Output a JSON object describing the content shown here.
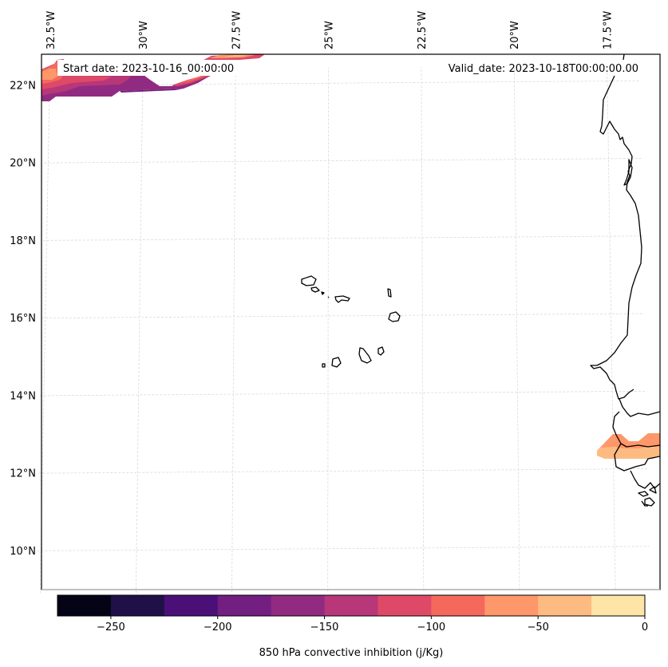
{
  "map": {
    "variable": "850 hPa convective inhibition",
    "units": "j/Kg",
    "annotations": {
      "start_date": "Start date: 2023-10-16_00:00:00",
      "valid_date": "Valid_date: 2023-10-18T00:00:00.00"
    },
    "extent": {
      "lon_min": -32.6,
      "lon_max": -16.2,
      "lat_min": 8.9,
      "lat_max": 22.7
    },
    "lon_ticks": [
      {
        "value": -32.5,
        "label": "32.5°W"
      },
      {
        "value": -30,
        "label": "30°W"
      },
      {
        "value": -27.5,
        "label": "27.5°W"
      },
      {
        "value": -25,
        "label": "25°W"
      },
      {
        "value": -22.5,
        "label": "22.5°W"
      },
      {
        "value": -20,
        "label": "20°W"
      },
      {
        "value": -17.5,
        "label": "17.5°W"
      }
    ],
    "lat_ticks": [
      {
        "value": 22,
        "label": "22°N"
      },
      {
        "value": 20,
        "label": "20°N"
      },
      {
        "value": 18,
        "label": "18°N"
      },
      {
        "value": 16,
        "label": "16°N"
      },
      {
        "value": 14,
        "label": "14°N"
      },
      {
        "value": 12,
        "label": "12°N"
      },
      {
        "value": 10,
        "label": "10°N"
      }
    ],
    "features": {
      "coastline": "West African coast (Mauritania, Senegal, Gambia, Guinea-Bissau)",
      "islands": "Cape Verde"
    },
    "filled_regions": [
      {
        "name": "northwest-cin-band",
        "value_range": [
          -175,
          -75
        ],
        "location": "top-left, ~21.5–22.7°N, 32.6–27°W"
      },
      {
        "name": "senegal-cin-band",
        "value_range": [
          -75,
          -25
        ],
        "location": "~12.2–12.9°N, 17.1–16.2°W"
      }
    ]
  },
  "colorbar": {
    "label": "850 hPa convective inhibition (j/Kg)",
    "min": -275,
    "max": 0,
    "levels": [
      -275,
      -250,
      -225,
      -200,
      -175,
      -150,
      -125,
      -100,
      -75,
      -50,
      -25,
      0
    ],
    "colors": [
      "#050416",
      "#1f1147",
      "#4a1078",
      "#721f81",
      "#912b81",
      "#b73779",
      "#de4968",
      "#f4695c",
      "#fe9769",
      "#febb81",
      "#fde5a7"
    ],
    "ticks": [
      {
        "value": -250,
        "label": "−250"
      },
      {
        "value": -200,
        "label": "−200"
      },
      {
        "value": -150,
        "label": "−150"
      },
      {
        "value": -100,
        "label": "−100"
      },
      {
        "value": -50,
        "label": "−50"
      },
      {
        "value": 0,
        "label": "0"
      }
    ]
  }
}
